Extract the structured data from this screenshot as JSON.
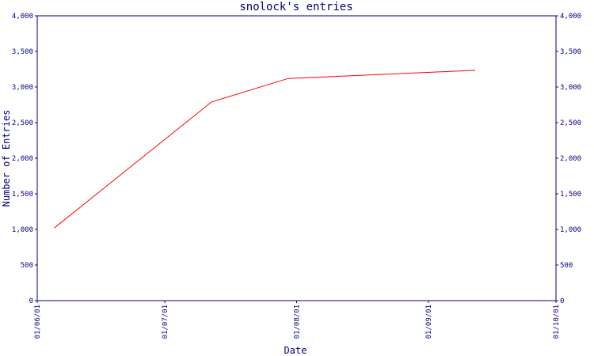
{
  "chart_data": {
    "type": "line",
    "title": "snolock's entries",
    "xlabel": "Date",
    "ylabel": "Number of Entries",
    "x_tick_labels": [
      "01/06/01",
      "01/07/01",
      "01/08/01",
      "01/09/01",
      "01/10/01"
    ],
    "x_ticks": [
      "2001-06-01",
      "2001-07-01",
      "2001-08-01",
      "2001-09-01",
      "2001-10-01"
    ],
    "xlim": [
      "2001-06-01",
      "2001-10-01"
    ],
    "ylim": [
      0,
      4000
    ],
    "y_ticks": [
      0,
      500,
      1000,
      1500,
      2000,
      2500,
      3000,
      3500,
      4000
    ],
    "y_tick_labels": [
      "0",
      "500",
      "1,000",
      "1,500",
      "2,000",
      "2,500",
      "3,000",
      "3,500",
      "4,000"
    ],
    "grid": false,
    "series": [
      {
        "color": "#ff0000",
        "points": [
          {
            "x": "2001-06-05",
            "y": 1020
          },
          {
            "x": "2001-07-12",
            "y": 2790
          },
          {
            "x": "2001-07-30",
            "y": 3120
          },
          {
            "x": "2001-09-12",
            "y": 3235
          }
        ]
      }
    ],
    "colors": {
      "axis": "#000080",
      "text": "#000080",
      "background": "#ffffff"
    }
  }
}
